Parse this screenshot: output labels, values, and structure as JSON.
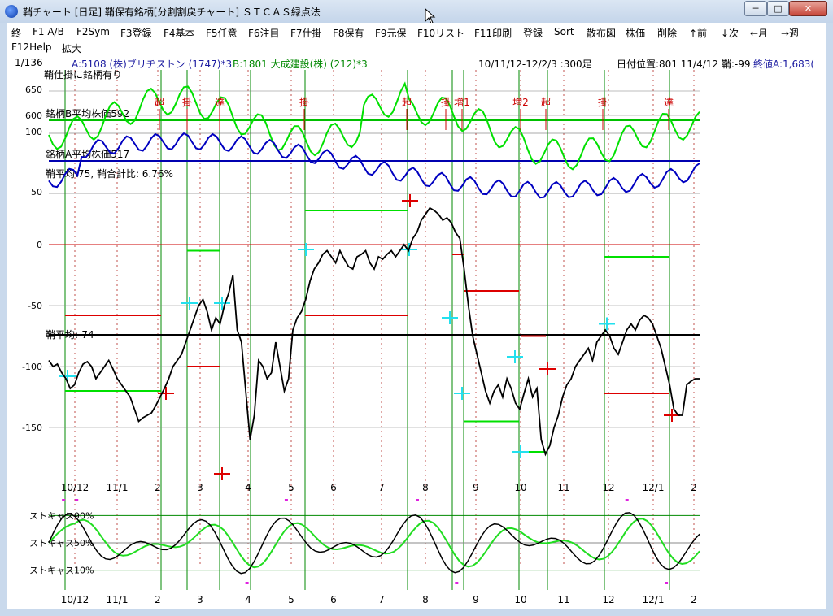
{
  "window": {
    "title": "鞘チャート [日足] 鞘保有銘柄[分割割戻チャート] ＳＴＣＡＳ緑点法",
    "buttons": {
      "minimize": "─",
      "maximize": "□",
      "close": "✕"
    }
  },
  "menu": {
    "row1": [
      "終",
      "F1 A/B",
      "F2Sym",
      "F3登録",
      "F4基本",
      "F5任意",
      "F6注目",
      "F7仕掛",
      "F8保有",
      "F9元保",
      "F10リスト",
      "F11印刷",
      "登録",
      "Sort",
      "散布図",
      "株価",
      "削除",
      "↑前",
      "↓次",
      "←月",
      "→週"
    ],
    "row2": [
      "F12Help",
      "拡大"
    ]
  },
  "status": {
    "page": "1/136",
    "stock_a": "A:5108 (株)ブリヂストン (1747)*3",
    "stock_b": "B:1801 大成建設(株) (212)*3",
    "range": "10/11/12-12/2/3 :300足",
    "date_info": "日付位置:801 11/4/12 鞘:-99",
    "close_info": "終値A:1,683("
  },
  "colors": {
    "spread": "#000000",
    "price_a": "#0000c0",
    "price_b": "#00e000",
    "stoch_fast": "#000000",
    "stoch_slow": "#22dd22",
    "signal_red": "#dd0000",
    "signal_cyan": "#22e0ee"
  },
  "chart_data": {
    "type": "line",
    "x_ticks": [
      "10/12",
      "11/1",
      "2",
      "3",
      "4",
      "5",
      "6",
      "7",
      "8",
      "9",
      "10",
      "11",
      "12",
      "12/1",
      "2"
    ],
    "upper_panel": {
      "title": "鞘仕掛に銘柄有り",
      "label_b": "銘柄B平均株価592",
      "label_a": "銘柄A平均株価517",
      "label_ratio": "鞘平均:75, 鞘合計比: 6.76%",
      "left_ticks": [
        "650",
        "600",
        "100",
        "50"
      ],
      "markers": [
        "超",
        "掛",
        "達",
        "掛",
        "超",
        "掛",
        "増1",
        "増2",
        "超",
        "掛",
        "達"
      ]
    },
    "main_panel": {
      "ylim": [
        -190,
        30
      ],
      "y_ticks": [
        0,
        -50,
        -100,
        -150
      ],
      "avg_label": "鞘平均:-74",
      "avg_value": -74,
      "spread": [
        -95,
        -100,
        -98,
        -105,
        -110,
        -118,
        -115,
        -105,
        -98,
        -96,
        -100,
        -110,
        -105,
        -100,
        -95,
        -102,
        -110,
        -115,
        -120,
        -125,
        -135,
        -145,
        -142,
        -140,
        -138,
        -132,
        -125,
        -118,
        -110,
        -100,
        -95,
        -90,
        -80,
        -70,
        -60,
        -50,
        -45,
        -55,
        -70,
        -60,
        -65,
        -50,
        -40,
        -25,
        -70,
        -80,
        -120,
        -160,
        -140,
        -95,
        -100,
        -110,
        -105,
        -80,
        -100,
        -120,
        -110,
        -70,
        -60,
        -55,
        -45,
        -30,
        -20,
        -15,
        -8,
        -5,
        -10,
        -15,
        -5,
        -12,
        -18,
        -20,
        -10,
        -8,
        -5,
        -15,
        -20,
        -10,
        -12,
        -8,
        -5,
        -10,
        -5,
        0,
        -5,
        5,
        10,
        20,
        25,
        30,
        28,
        25,
        20,
        22,
        18,
        10,
        5,
        -20,
        -50,
        -75,
        -90,
        -105,
        -120,
        -130,
        -120,
        -115,
        -125,
        -110,
        -118,
        -130,
        -135,
        -122,
        -110,
        -125,
        -118,
        -160,
        -172,
        -165,
        -150,
        -140,
        -125,
        -115,
        -110,
        -100,
        -95,
        -90,
        -85,
        -95,
        -80,
        -75,
        -70,
        -75,
        -85,
        -90,
        -80,
        -70,
        -65,
        -70,
        -62,
        -58,
        -60,
        -65,
        -75,
        -85,
        -100,
        -115,
        -135,
        -140,
        -140,
        -115,
        -112,
        -110,
        -110
      ],
      "right_ticks": [
        "0",
        "-50",
        "-100",
        "-150"
      ]
    },
    "stoch_panel": {
      "labels": [
        "ストキャス90%",
        "ストキャス50%",
        "ストキャス10%"
      ],
      "levels": [
        90,
        50,
        10
      ]
    }
  }
}
